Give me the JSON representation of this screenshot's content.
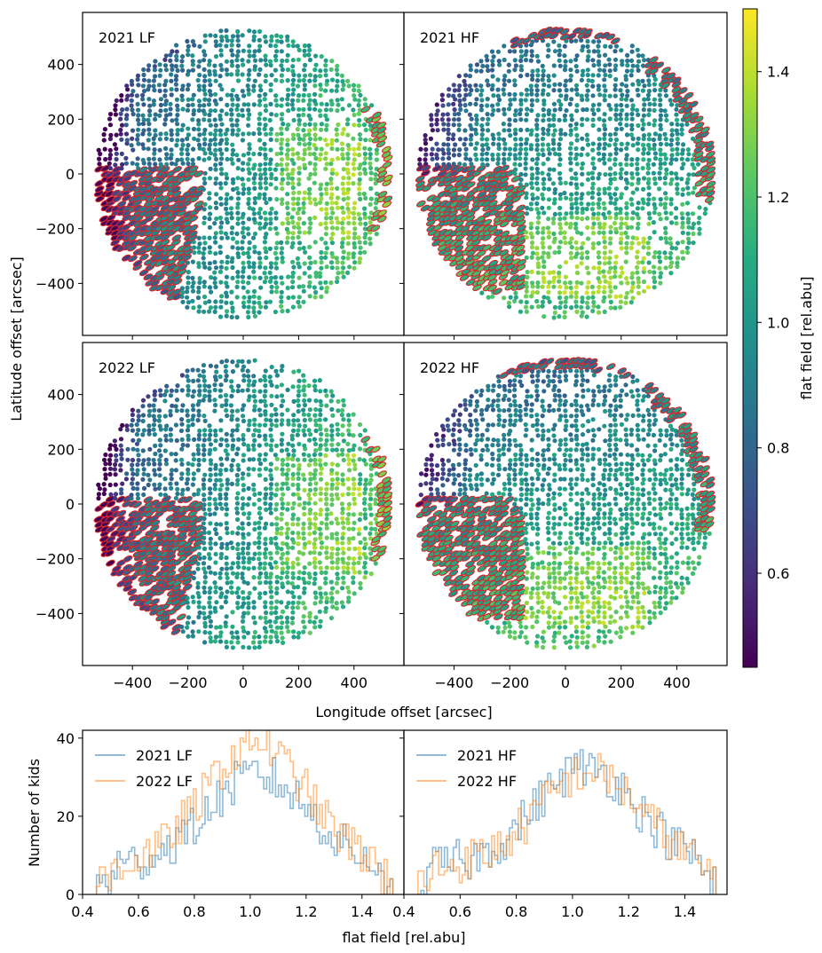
{
  "figure": {
    "colorbar_label": "flat field [rel.abu]",
    "colorbar_ticks": [
      "0.6",
      "0.8",
      "1.0",
      "1.2",
      "1.4"
    ],
    "colorbar_range": [
      0.45,
      1.5
    ],
    "colormap": "viridis",
    "flagged_edge_color": "#d62728",
    "map_xlabel": "Longitude offset [arcsec]",
    "map_ylabel": "Latitude offset [arcsec]",
    "hist_xlabel": "flat field [rel.abu]",
    "hist_ylabel": "Number of kids"
  },
  "chart_data": [
    {
      "type": "scatter",
      "panel": "2021 LF",
      "title": "2021 LF",
      "xlim": [
        -580,
        580
      ],
      "ylim": [
        -590,
        590
      ],
      "xticks": [
        -400,
        -200,
        0,
        200,
        400
      ],
      "yticks": [
        -400,
        -200,
        0,
        200,
        400
      ],
      "disk_radius_arcsec": 530,
      "flagged_region": "lower-left (x approx -550 to -150, y approx -480 to 0)",
      "value_trend": "low (~0.5) on left limb, medium (~1.0) center, high (~1.35) right-center"
    },
    {
      "type": "scatter",
      "panel": "2021 HF",
      "title": "2021 HF",
      "xlim": [
        -580,
        580
      ],
      "ylim": [
        -590,
        590
      ],
      "xticks": [
        -400,
        -200,
        0,
        200,
        400
      ],
      "yticks": [
        -400,
        -200,
        0,
        200,
        400
      ],
      "disk_radius_arcsec": 530,
      "flagged_region": "left (x approx -520 to -150, y approx -420 to 30) and right limb",
      "value_trend": "low (~0.5) upper-left limb, high (~1.4) lower-center"
    },
    {
      "type": "scatter",
      "panel": "2022 LF",
      "title": "2022 LF",
      "xlim": [
        -580,
        580
      ],
      "ylim": [
        -590,
        590
      ],
      "xticks": [
        -400,
        -200,
        0,
        200,
        400
      ],
      "yticks": [
        -400,
        -200,
        0,
        200,
        400
      ],
      "disk_radius_arcsec": 530,
      "flagged_region": "lower-left (x approx -550 to -150, y approx -480 to 0)",
      "value_trend": "low (~0.5) on left limb, medium (~1.0) center, high (~1.35) right-center"
    },
    {
      "type": "scatter",
      "panel": "2022 HF",
      "title": "2022 HF",
      "xlim": [
        -580,
        580
      ],
      "ylim": [
        -590,
        590
      ],
      "xticks": [
        -400,
        -200,
        0,
        200,
        400
      ],
      "yticks": [
        -400,
        -200,
        0,
        200,
        400
      ],
      "disk_radius_arcsec": 530,
      "flagged_region": "left (x approx -520 to -150, y approx -420 to 30) and right limb",
      "value_trend": "low (~0.5) upper-left limb, high (~1.4) lower-center"
    },
    {
      "type": "histogram",
      "panel": "LF",
      "xlim": [
        0.4,
        1.55
      ],
      "ylim": [
        0,
        42
      ],
      "xticks": [
        "0.4",
        "0.6",
        "0.8",
        "1.0",
        "1.2",
        "1.4"
      ],
      "yticks": [
        "0",
        "20",
        "40"
      ],
      "x_start": 0.45,
      "bin_width": 0.0105,
      "legend_position": "upper-left",
      "series": [
        {
          "name": "2021 LF",
          "color": "#1f77b4",
          "peak": 30,
          "peak_x": 1.03
        },
        {
          "name": "2022 LF",
          "color": "#ff7f0e",
          "peak": 40,
          "peak_x": 1.02
        }
      ]
    },
    {
      "type": "histogram",
      "panel": "HF",
      "xlim": [
        0.4,
        1.55
      ],
      "ylim": [
        0,
        42
      ],
      "xticks": [
        "0.4",
        "0.6",
        "0.8",
        "1.0",
        "1.2",
        "1.4"
      ],
      "x_start": 0.45,
      "bin_width": 0.0105,
      "legend_position": "upper-left",
      "series": [
        {
          "name": "2021 HF",
          "color": "#1f77b4",
          "peak": 33,
          "peak_x": 1.05
        },
        {
          "name": "2022 HF",
          "color": "#ff7f0e",
          "peak": 31,
          "peak_x": 1.06
        }
      ]
    }
  ]
}
